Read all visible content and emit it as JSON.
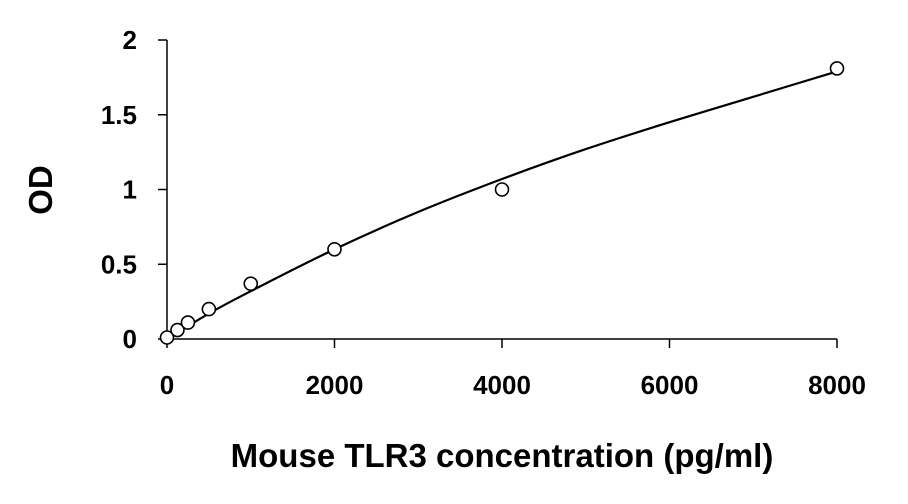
{
  "chart_data": {
    "type": "scatter",
    "title": "",
    "xlabel": "Mouse TLR3 concentration (pg/ml)",
    "ylabel": "OD",
    "xlim": [
      0,
      8000
    ],
    "ylim": [
      0,
      2
    ],
    "xticks": [
      0,
      2000,
      4000,
      6000,
      8000
    ],
    "xtick_labels": [
      "0",
      "2000",
      "4000",
      "6000",
      "8000"
    ],
    "yticks": [
      0,
      0.5,
      1,
      1.5,
      2
    ],
    "ytick_labels": [
      "0",
      "0.5",
      "1",
      "1.5",
      "2"
    ],
    "grid": false,
    "legend": "none",
    "series": [
      {
        "marker": "open-circle",
        "x": [
          0,
          125,
          250,
          500,
          1000,
          2000,
          4000,
          8000
        ],
        "y": [
          0.01,
          0.06,
          0.11,
          0.2,
          0.37,
          0.6,
          1.0,
          1.81
        ]
      }
    ],
    "fit_curve": {
      "x": [
        0,
        500,
        1000,
        2000,
        3000,
        4000,
        5000,
        6000,
        7000,
        8000
      ],
      "y": [
        0.0,
        0.17,
        0.32,
        0.6,
        0.85,
        1.07,
        1.27,
        1.45,
        1.62,
        1.79
      ]
    },
    "colors": {
      "line": "#000000",
      "marker_fill": "#ffffff",
      "marker_stroke": "#000000"
    }
  }
}
